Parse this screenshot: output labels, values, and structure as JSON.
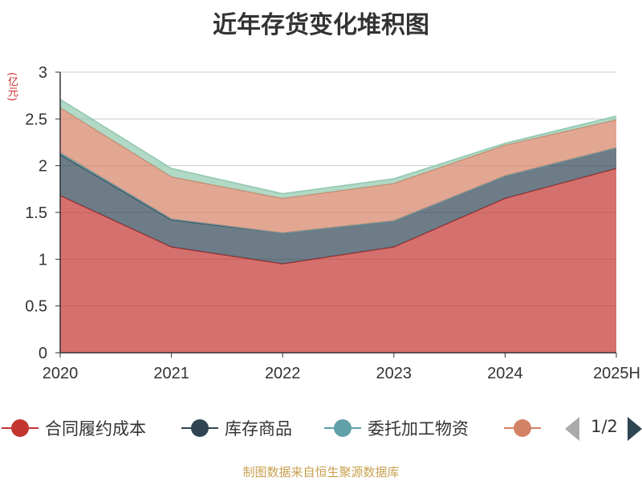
{
  "title": "近年存货变化堆积图",
  "unit": "(亿元)",
  "source": "制图数据来自恒生聚源数据库",
  "legend": {
    "items": [
      {
        "label": "合同履约成本",
        "color": "#c23531"
      },
      {
        "label": "库存商品",
        "color": "#2f4554"
      },
      {
        "label": "委托加工物资",
        "color": "#61a0a8"
      },
      {
        "label": "",
        "color": "#d48265"
      }
    ],
    "page": "1/2"
  },
  "chart_data": {
    "type": "area",
    "stacked": true,
    "categories": [
      "2020",
      "2021",
      "2022",
      "2023",
      "2024",
      "2025H"
    ],
    "ylim": [
      0,
      3
    ],
    "yticks": [
      "0",
      "0.5",
      "1",
      "1.5",
      "2",
      "2.5",
      "3"
    ],
    "grid": true,
    "series": [
      {
        "name": "合同履约成本",
        "color": "#c23531",
        "values": [
          1.68,
          1.13,
          0.95,
          1.13,
          1.65,
          1.97
        ]
      },
      {
        "name": "库存商品",
        "color": "#2f4554",
        "values": [
          0.44,
          0.29,
          0.33,
          0.28,
          0.24,
          0.22
        ]
      },
      {
        "name": "委托加工物资",
        "color": "#61a0a8",
        "values": [
          0.02,
          0.01,
          0.0,
          0.0,
          0.0,
          0.0
        ]
      },
      {
        "name": "",
        "color": "#d48265",
        "values": [
          0.48,
          0.45,
          0.37,
          0.4,
          0.33,
          0.3
        ]
      },
      {
        "name": "",
        "color": "#91c7ae",
        "values": [
          0.09,
          0.09,
          0.05,
          0.05,
          0.02,
          0.04
        ]
      }
    ]
  }
}
